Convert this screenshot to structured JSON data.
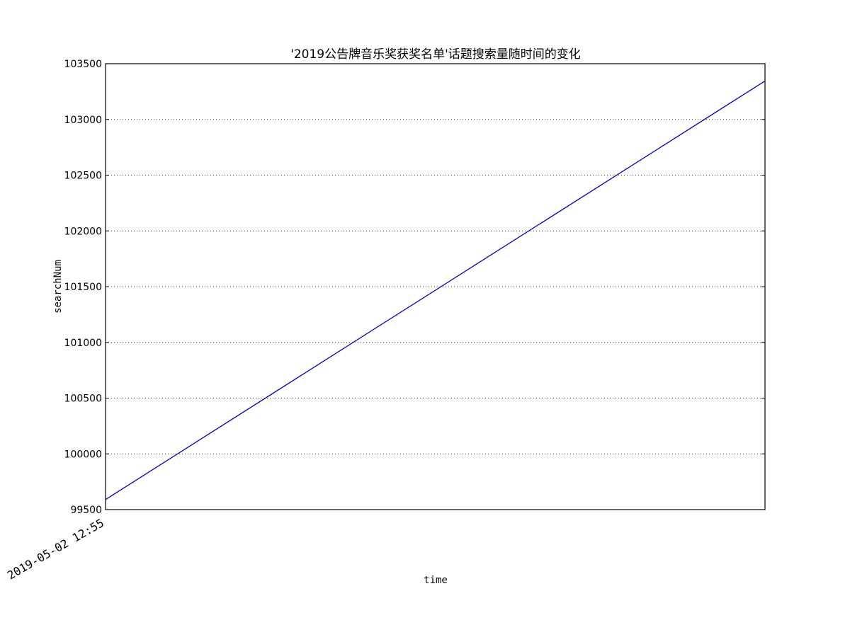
{
  "chart_data": {
    "type": "line",
    "title": "'2019公告牌音乐奖获奖名单'话题搜索量随时间的变化",
    "xlabel": "time",
    "ylabel": "searchNum",
    "x_tick_labels": [
      "2019-05-02 12:55"
    ],
    "y_ticks": [
      99500,
      100000,
      100500,
      101000,
      101500,
      102000,
      102500,
      103000,
      103500
    ],
    "ylim": [
      99500,
      103500
    ],
    "grid": "horizontal-dotted",
    "series": [
      {
        "x": [
          "2019-05-02 12:55",
          "end"
        ],
        "values": [
          99590,
          103345
        ],
        "color": "#0000cc"
      }
    ]
  }
}
